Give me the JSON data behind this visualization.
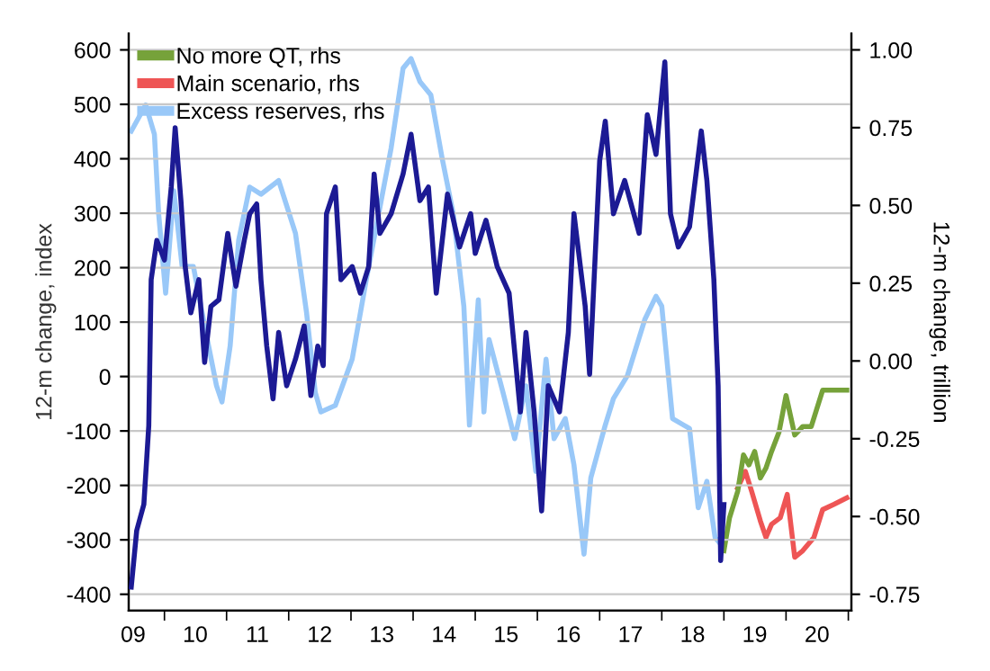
{
  "chart_data": {
    "type": "line",
    "ylabel": "12-m change, index",
    "y2label": "12-m change, trillion",
    "xlim": [
      "2009-06-05",
      "2021-01-19"
    ],
    "xticks": [
      {
        "value": "2009-07-01",
        "label": "09"
      },
      {
        "value": "2010-07-01",
        "label": "10"
      },
      {
        "value": "2011-07-01",
        "label": "11"
      },
      {
        "value": "2012-07-01",
        "label": "12"
      },
      {
        "value": "2013-07-01",
        "label": "13"
      },
      {
        "value": "2014-07-01",
        "label": "14"
      },
      {
        "value": "2015-07-01",
        "label": "15"
      },
      {
        "value": "2016-07-01",
        "label": "16"
      },
      {
        "value": "2017-07-01",
        "label": "17"
      },
      {
        "value": "2018-07-01",
        "label": "18"
      },
      {
        "value": "2019-07-01",
        "label": "19"
      },
      {
        "value": "2020-07-01",
        "label": "20"
      },
      {
        "value": "2010",
        "label": null
      },
      {
        "value": "2011",
        "label": null
      },
      {
        "value": "2012",
        "label": null
      },
      {
        "value": "2013",
        "label": null
      },
      {
        "value": "2014",
        "label": null
      },
      {
        "value": "2015",
        "label": null
      },
      {
        "value": "2016",
        "label": null
      },
      {
        "value": "2017",
        "label": null
      },
      {
        "value": "2018",
        "label": null
      },
      {
        "value": "2019",
        "label": null
      },
      {
        "value": "2020",
        "label": null
      },
      {
        "value": "2021",
        "label": null
      }
    ],
    "ylim": [
      -430,
      630
    ],
    "yticks": [
      -400,
      -300,
      -200,
      -100,
      0,
      100,
      200,
      300,
      400,
      500,
      600
    ],
    "y2lim": [
      -0.8025,
      1.0525
    ],
    "y2ticks": [
      {
        "value": -0.75,
        "label": "-0.75"
      },
      {
        "value": -0.5,
        "label": "-0.50"
      },
      {
        "value": -0.25,
        "label": "-0.25"
      },
      {
        "value": 0,
        "label": "0.00"
      },
      {
        "value": 0.25,
        "label": "0.25"
      },
      {
        "value": 0.5,
        "label": "0.50"
      },
      {
        "value": 0.75,
        "label": "0.75"
      },
      {
        "value": 1,
        "label": "1.00"
      }
    ],
    "grid": "y",
    "legend": "top left",
    "line_style": "solid",
    "marker": "none",
    "series": [
      {
        "name": "No more QT, rhs",
        "color": "#76a23a",
        "axis": "y2",
        "x": [
          "2019-01-01",
          "2019-02-03",
          "2019-03-23",
          "2019-04-26",
          "2019-05-28",
          "2019-07-01",
          "2019-08-03",
          "2019-09-05",
          "2019-10-08",
          "2019-11-21",
          "2020-01-01",
          "2020-02-21",
          "2020-04-08",
          "2020-05-28",
          "2020-08-03",
          "2020-12-23"
        ],
        "values": [
          -0.61,
          -0.504,
          -0.419,
          -0.302,
          -0.334,
          -0.291,
          -0.376,
          -0.344,
          -0.291,
          -0.228,
          -0.111,
          -0.238,
          -0.211,
          -0.211,
          -0.094,
          -0.094
        ]
      },
      {
        "name": "Main scenario, rhs",
        "color": "#ee5555",
        "axis": "y2",
        "x": [
          "2019-03-23",
          "2019-05-07",
          "2019-06-13",
          "2019-08-03",
          "2019-09-05",
          "2019-10-08",
          "2019-11-28",
          "2020-01-08",
          "2020-02-21",
          "2020-04-08",
          "2020-06-13",
          "2020-08-03",
          "2020-10-08",
          "2020-12-23"
        ],
        "values": [
          -0.408,
          -0.355,
          -0.419,
          -0.514,
          -0.567,
          -0.525,
          -0.504,
          -0.429,
          -0.631,
          -0.61,
          -0.567,
          -0.478,
          -0.461,
          -0.44
        ]
      },
      {
        "name": "Excess reserves, rhs",
        "color": "#99c8f8",
        "axis": "y2",
        "x": [
          "2009-06-20",
          "2009-09-13",
          "2009-11-03",
          "2009-11-28",
          "2010-01-08",
          "2010-02-25",
          "2010-04-15",
          "2010-06-20",
          "2010-08-25",
          "2010-11-03",
          "2010-12-05",
          "2011-01-22",
          "2011-03-13",
          "2011-05-17",
          "2011-07-22",
          "2011-11-03",
          "2012-02-10",
          "2012-04-15",
          "2012-06-05",
          "2012-07-08",
          "2012-10-01",
          "2013-01-08",
          "2013-04-01",
          "2013-06-20",
          "2013-08-25",
          "2013-11-03",
          "2013-12-20",
          "2014-02-10",
          "2014-04-15",
          "2014-06-20",
          "2014-08-25",
          "2014-10-26",
          "2014-11-28",
          "2015-01-19",
          "2015-02-21",
          "2015-03-23",
          "2015-06-13",
          "2015-08-21",
          "2015-10-26",
          "2015-12-23",
          "2016-02-21",
          "2016-04-08",
          "2016-06-13",
          "2016-08-03",
          "2016-10-01",
          "2016-11-10",
          "2017-02-03",
          "2017-03-23",
          "2017-06-13",
          "2017-09-23",
          "2017-11-28",
          "2018-01-01",
          "2018-03-05",
          "2018-06-13",
          "2018-08-03",
          "2018-09-23",
          "2018-11-10",
          "2018-12-13"
        ],
        "values": [
          0.739,
          0.823,
          0.729,
          0.473,
          0.218,
          0.547,
          0.304,
          0.304,
          0.113,
          -0.08,
          -0.132,
          0.048,
          0.388,
          0.559,
          0.536,
          0.58,
          0.41,
          0.155,
          -0.101,
          -0.164,
          -0.143,
          0.006,
          0.262,
          0.494,
          0.685,
          0.941,
          0.972,
          0.898,
          0.855,
          0.653,
          0.473,
          0.176,
          -0.206,
          0.197,
          -0.164,
          0.069,
          -0.101,
          -0.25,
          -0.08,
          -0.355,
          0.006,
          -0.25,
          -0.185,
          -0.334,
          -0.621,
          -0.376,
          -0.206,
          -0.121,
          -0.047,
          0.133,
          0.208,
          0.176,
          -0.185,
          -0.217,
          -0.472,
          -0.387,
          -0.567,
          -0.589
        ]
      },
      {
        "color": "#1c1a94",
        "axis": "y",
        "x": [
          "2009-06-20",
          "2009-07-22",
          "2009-09-02",
          "2009-10-01",
          "2009-10-15",
          "2009-11-17",
          "2010-01-01",
          "2010-02-10",
          "2010-03-05",
          "2010-04-08",
          "2010-05-03",
          "2010-06-05",
          "2010-07-22",
          "2010-08-25",
          "2010-10-01",
          "2010-11-17",
          "2011-01-08",
          "2011-02-25",
          "2011-04-15",
          "2011-05-17",
          "2011-06-27",
          "2011-07-22",
          "2011-08-25",
          "2011-10-01",
          "2011-11-03",
          "2011-12-20",
          "2012-02-10",
          "2012-04-01",
          "2012-05-10",
          "2012-06-20",
          "2012-07-22",
          "2012-08-10",
          "2012-10-01",
          "2012-11-03",
          "2013-01-08",
          "2013-02-25",
          "2013-04-15",
          "2013-05-17",
          "2013-06-20",
          "2013-08-25",
          "2013-11-03",
          "2013-12-20",
          "2014-02-10",
          "2014-04-01",
          "2014-05-17",
          "2014-07-22",
          "2014-10-01",
          "2014-12-05",
          "2015-01-01",
          "2015-03-05",
          "2015-05-10",
          "2015-07-19",
          "2015-09-23",
          "2015-10-26",
          "2015-12-13",
          "2016-01-26",
          "2016-03-05",
          "2016-05-10",
          "2016-07-01",
          "2016-08-03",
          "2016-10-08",
          "2016-11-03",
          "2017-01-01",
          "2017-02-03",
          "2017-03-23",
          "2017-05-28",
          "2017-08-21",
          "2017-10-08",
          "2017-11-28",
          "2018-01-19",
          "2018-02-21",
          "2018-04-08",
          "2018-06-13",
          "2018-08-21",
          "2018-09-23",
          "2018-11-03",
          "2018-11-28",
          "2018-12-13",
          "2019-01-01"
        ],
        "values": [
          -387,
          -283,
          -235,
          -90,
          178,
          250,
          214,
          348,
          457,
          323,
          202,
          117,
          178,
          26,
          129,
          141,
          263,
          166,
          250,
          299,
          317,
          178,
          56,
          -41,
          81,
          -17,
          32,
          93,
          -35,
          56,
          20,
          299,
          348,
          178,
          202,
          153,
          202,
          372,
          263,
          299,
          372,
          445,
          323,
          348,
          153,
          335,
          238,
          299,
          226,
          287,
          202,
          153,
          -65,
          81,
          -65,
          -247,
          -17,
          -65,
          81,
          299,
          129,
          4,
          396,
          469,
          299,
          360,
          263,
          481,
          408,
          578,
          299,
          238,
          275,
          451,
          360,
          178,
          -17,
          -338,
          -235
        ]
      }
    ]
  }
}
